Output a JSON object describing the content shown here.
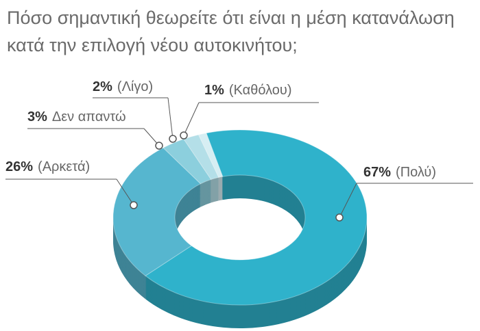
{
  "chart_data": {
    "type": "pie",
    "title": "Πόσο σημαντική θεωρείτε ότι είναι η μέση κατανάλωση κατά την επιλογή νέου αυτοκινήτου;",
    "categories": [
      "(Πολύ)",
      "(Αρκετά)",
      "Δεν απαντώ",
      "(Λίγο)",
      "(Καθόλου)"
    ],
    "values": [
      67,
      26,
      3,
      2,
      1
    ],
    "value_labels": [
      "67%",
      "26%",
      "3%",
      "2%",
      "1%"
    ],
    "colors": [
      "#2fb2cb",
      "#56b6cf",
      "#8ccfdd",
      "#b4dfe8",
      "#d6eef3"
    ]
  }
}
